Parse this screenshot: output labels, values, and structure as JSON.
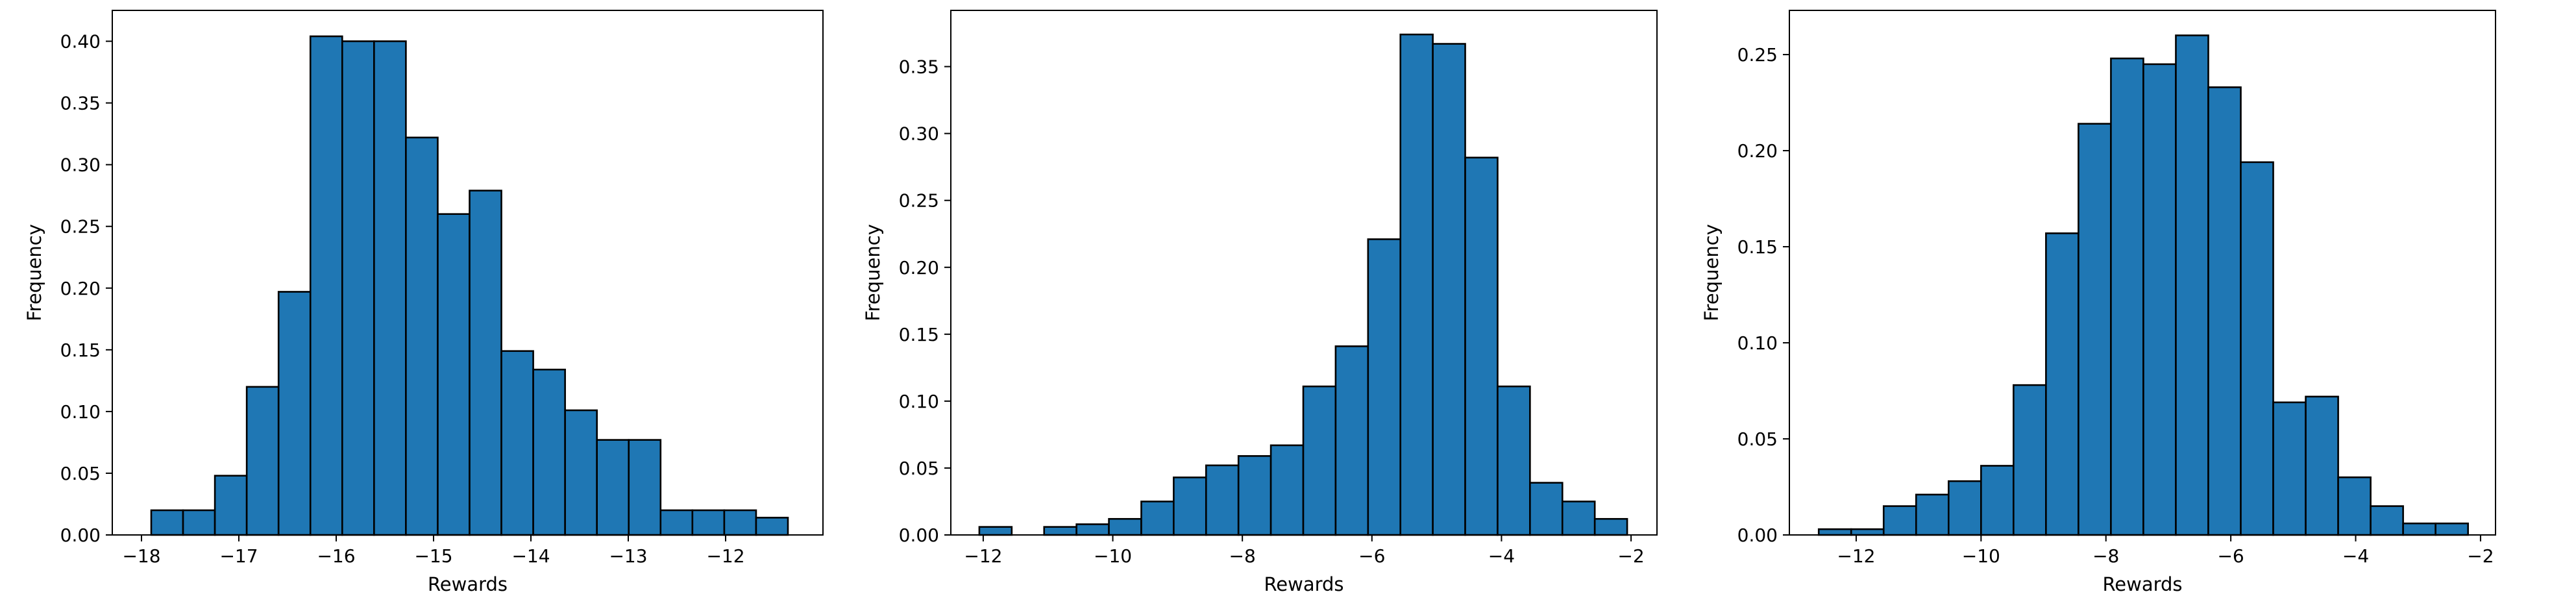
{
  "chart_data": [
    {
      "type": "bar",
      "title": "",
      "xlabel": "Rewards",
      "ylabel": "Frequency",
      "bar_color": "#1f77b4",
      "edge_color": "#000000",
      "xlim": [
        -18.3,
        -11.0
      ],
      "ylim": [
        0,
        0.425
      ],
      "bin_start": -17.9,
      "bin_width": 0.327,
      "values": [
        0.02,
        0.02,
        0.048,
        0.12,
        0.197,
        0.404,
        0.4,
        0.4,
        0.322,
        0.26,
        0.279,
        0.149,
        0.134,
        0.101,
        0.077,
        0.077,
        0.02,
        0.02,
        0.02,
        0.014
      ],
      "xticks": [
        -18,
        -17,
        -16,
        -15,
        -14,
        -13,
        -12
      ],
      "xtick_labels": [
        "−18",
        "−17",
        "−16",
        "−15",
        "−14",
        "−13",
        "−12"
      ],
      "yticks": [
        0.0,
        0.05,
        0.1,
        0.15,
        0.2,
        0.25,
        0.3,
        0.35,
        0.4
      ],
      "ytick_labels": [
        "0.00",
        "0.05",
        "0.10",
        "0.15",
        "0.20",
        "0.25",
        "0.30",
        "0.35",
        "0.40"
      ],
      "grid": false
    },
    {
      "type": "bar",
      "title": "",
      "xlabel": "Rewards",
      "ylabel": "Frequency",
      "bar_color": "#1f77b4",
      "edge_color": "#000000",
      "xlim": [
        -12.5,
        -1.6
      ],
      "ylim": [
        0,
        0.392
      ],
      "bin_start": -12.06,
      "bin_width": 0.5,
      "values": [
        0.006,
        0.0,
        0.006,
        0.008,
        0.012,
        0.025,
        0.043,
        0.052,
        0.059,
        0.067,
        0.111,
        0.141,
        0.221,
        0.374,
        0.367,
        0.282,
        0.111,
        0.039,
        0.025,
        0.012
      ],
      "xticks": [
        -12,
        -10,
        -8,
        -6,
        -4,
        -2
      ],
      "xtick_labels": [
        "−12",
        "−10",
        "−8",
        "−6",
        "−4",
        "−2"
      ],
      "yticks": [
        0.0,
        0.05,
        0.1,
        0.15,
        0.2,
        0.25,
        0.3,
        0.35
      ],
      "ytick_labels": [
        "0.00",
        "0.05",
        "0.10",
        "0.15",
        "0.20",
        "0.25",
        "0.30",
        "0.35"
      ],
      "grid": false
    },
    {
      "type": "bar",
      "title": "",
      "xlabel": "Rewards",
      "ylabel": "Frequency",
      "bar_color": "#1f77b4",
      "edge_color": "#000000",
      "xlim": [
        -13.07,
        -1.76
      ],
      "ylim": [
        0,
        0.273
      ],
      "bin_start": -12.6,
      "bin_width": 0.52,
      "values": [
        0.003,
        0.003,
        0.015,
        0.021,
        0.028,
        0.036,
        0.078,
        0.157,
        0.214,
        0.248,
        0.245,
        0.26,
        0.233,
        0.194,
        0.069,
        0.072,
        0.03,
        0.015,
        0.006,
        0.006
      ],
      "xticks": [
        -12,
        -10,
        -8,
        -6,
        -4,
        -2
      ],
      "xtick_labels": [
        "−12",
        "−10",
        "−8",
        "−6",
        "−4",
        "−2"
      ],
      "yticks": [
        0.0,
        0.05,
        0.1,
        0.15,
        0.2,
        0.25
      ],
      "ytick_labels": [
        "0.00",
        "0.05",
        "0.10",
        "0.15",
        "0.20",
        "0.25"
      ],
      "grid": false
    }
  ]
}
